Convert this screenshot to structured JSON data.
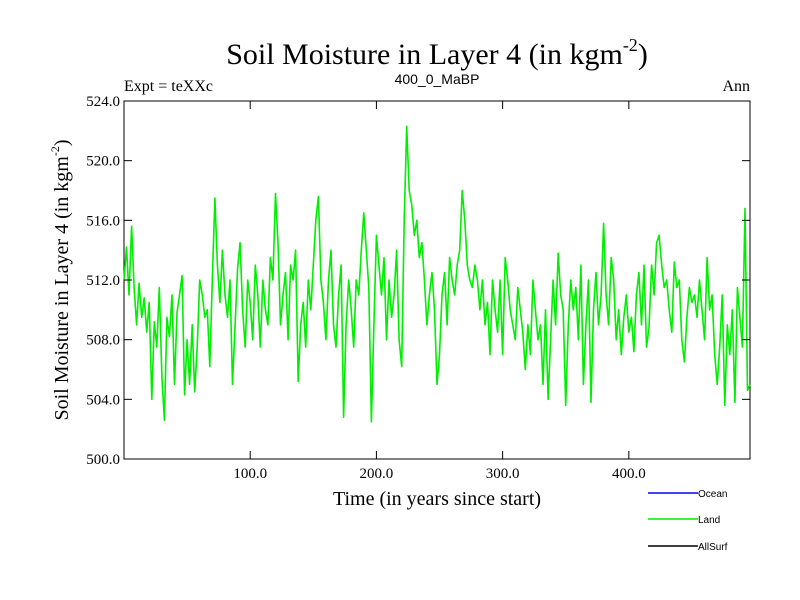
{
  "chart_data": {
    "type": "line",
    "title_main": "Soil Moisture in Layer 4 (in kgm",
    "title_sup": "-2",
    "title_end": ")",
    "subtitle_left": "Expt = teXXc",
    "subtitle_center": "400_0_MaBP",
    "subtitle_right": "Ann",
    "xlabel": "Time (in years since start)",
    "ylabel_main": "Soil Moisture in Layer 4 (in kgm",
    "ylabel_sup": "-2",
    "ylabel_end": ")",
    "xlim": [
      0,
      496
    ],
    "ylim": [
      500,
      524
    ],
    "x_ticks": [
      100,
      200,
      300,
      400
    ],
    "x_tick_labels": [
      "100.0",
      "200.0",
      "300.0",
      "400.0"
    ],
    "y_ticks": [
      500,
      504,
      508,
      512,
      516,
      520,
      524
    ],
    "y_tick_labels": [
      "500.0",
      "504.0",
      "508.0",
      "512.0",
      "516.0",
      "520.0",
      "524.0"
    ],
    "legend": [
      {
        "name": "Ocean",
        "color": "#0000ff"
      },
      {
        "name": "Land",
        "color": "#00ee00"
      },
      {
        "name": "AllSurf",
        "color": "#000000"
      }
    ],
    "series": [
      {
        "name": "Land",
        "color": "#00ee00",
        "points": [
          [
            0,
            512
          ],
          [
            2,
            514.2
          ],
          [
            4,
            511
          ],
          [
            6,
            515.6
          ],
          [
            8,
            511.5
          ],
          [
            10,
            509
          ],
          [
            12,
            511.8
          ],
          [
            14,
            509.5
          ],
          [
            16,
            510.8
          ],
          [
            18,
            508.5
          ],
          [
            20,
            510.5
          ],
          [
            22,
            504
          ],
          [
            24,
            509.2
          ],
          [
            26,
            507.5
          ],
          [
            28,
            511.5
          ],
          [
            30,
            505.5
          ],
          [
            32,
            502.6
          ],
          [
            34,
            509.5
          ],
          [
            36,
            508.2
          ],
          [
            38,
            511
          ],
          [
            40,
            505
          ],
          [
            42,
            509.8
          ],
          [
            44,
            511
          ],
          [
            46,
            512.3
          ],
          [
            48,
            504.3
          ],
          [
            50,
            508
          ],
          [
            52,
            505
          ],
          [
            54,
            509
          ],
          [
            56,
            504.5
          ],
          [
            58,
            507.5
          ],
          [
            60,
            512
          ],
          [
            62,
            511
          ],
          [
            64,
            509.5
          ],
          [
            66,
            510
          ],
          [
            68,
            506.2
          ],
          [
            70,
            512
          ],
          [
            72,
            517.5
          ],
          [
            74,
            513
          ],
          [
            76,
            510.5
          ],
          [
            78,
            514
          ],
          [
            80,
            511
          ],
          [
            82,
            509.5
          ],
          [
            84,
            512
          ],
          [
            86,
            505
          ],
          [
            88,
            509
          ],
          [
            90,
            512.8
          ],
          [
            92,
            514.5
          ],
          [
            94,
            510
          ],
          [
            96,
            507.5
          ],
          [
            98,
            512
          ],
          [
            100,
            510.5
          ],
          [
            102,
            508
          ],
          [
            104,
            513
          ],
          [
            106,
            511
          ],
          [
            108,
            507.5
          ],
          [
            110,
            512
          ],
          [
            112,
            510
          ],
          [
            114,
            509
          ],
          [
            116,
            513.5
          ],
          [
            118,
            512
          ],
          [
            120,
            517.8
          ],
          [
            122,
            514.5
          ],
          [
            124,
            509
          ],
          [
            126,
            511
          ],
          [
            128,
            512.5
          ],
          [
            130,
            508
          ],
          [
            132,
            513
          ],
          [
            134,
            512
          ],
          [
            136,
            514
          ],
          [
            138,
            505.2
          ],
          [
            140,
            509
          ],
          [
            142,
            510.5
          ],
          [
            144,
            507.5
          ],
          [
            146,
            512
          ],
          [
            148,
            510
          ],
          [
            150,
            513
          ],
          [
            152,
            516
          ],
          [
            154,
            517.6
          ],
          [
            156,
            512
          ],
          [
            158,
            510.5
          ],
          [
            160,
            508
          ],
          [
            162,
            512
          ],
          [
            164,
            514
          ],
          [
            166,
            509
          ],
          [
            168,
            507.5
          ],
          [
            170,
            511
          ],
          [
            172,
            513
          ],
          [
            174,
            502.8
          ],
          [
            176,
            509
          ],
          [
            178,
            512
          ],
          [
            180,
            510
          ],
          [
            182,
            507.5
          ],
          [
            184,
            512
          ],
          [
            186,
            511
          ],
          [
            188,
            514
          ],
          [
            190,
            516.5
          ],
          [
            192,
            514
          ],
          [
            194,
            511.5
          ],
          [
            196,
            502.5
          ],
          [
            198,
            509
          ],
          [
            200,
            515
          ],
          [
            202,
            513
          ],
          [
            204,
            511
          ],
          [
            206,
            513.5
          ],
          [
            208,
            508
          ],
          [
            210,
            512
          ],
          [
            212,
            509.5
          ],
          [
            214,
            511
          ],
          [
            216,
            514
          ],
          [
            218,
            508
          ],
          [
            220,
            506.2
          ],
          [
            222,
            516
          ],
          [
            224,
            522.3
          ],
          [
            226,
            518
          ],
          [
            228,
            517
          ],
          [
            230,
            515
          ],
          [
            232,
            516
          ],
          [
            234,
            513.5
          ],
          [
            236,
            514.5
          ],
          [
            238,
            512
          ],
          [
            240,
            509
          ],
          [
            242,
            511
          ],
          [
            244,
            512.5
          ],
          [
            246,
            510
          ],
          [
            248,
            505
          ],
          [
            250,
            507
          ],
          [
            252,
            511
          ],
          [
            254,
            512.5
          ],
          [
            256,
            509
          ],
          [
            258,
            513.5
          ],
          [
            260,
            512
          ],
          [
            262,
            511
          ],
          [
            264,
            513
          ],
          [
            266,
            514
          ],
          [
            268,
            518
          ],
          [
            270,
            516
          ],
          [
            272,
            513
          ],
          [
            274,
            512
          ],
          [
            276,
            511.5
          ],
          [
            278,
            513
          ],
          [
            280,
            512
          ],
          [
            282,
            510
          ],
          [
            284,
            512
          ],
          [
            286,
            509
          ],
          [
            288,
            510.5
          ],
          [
            290,
            507
          ],
          [
            292,
            512
          ],
          [
            294,
            510
          ],
          [
            296,
            508.5
          ],
          [
            298,
            512
          ],
          [
            300,
            507
          ],
          [
            302,
            513.5
          ],
          [
            304,
            512
          ],
          [
            306,
            510
          ],
          [
            308,
            509
          ],
          [
            310,
            508
          ],
          [
            312,
            511.5
          ],
          [
            314,
            510
          ],
          [
            316,
            508.5
          ],
          [
            318,
            506
          ],
          [
            320,
            509
          ],
          [
            322,
            507
          ],
          [
            324,
            512
          ],
          [
            326,
            510
          ],
          [
            328,
            508
          ],
          [
            330,
            509
          ],
          [
            332,
            505
          ],
          [
            334,
            510
          ],
          [
            336,
            504
          ],
          [
            338,
            508
          ],
          [
            340,
            512
          ],
          [
            342,
            509
          ],
          [
            344,
            513.8
          ],
          [
            346,
            511
          ],
          [
            348,
            510
          ],
          [
            350,
            503.6
          ],
          [
            352,
            509
          ],
          [
            354,
            512
          ],
          [
            356,
            510
          ],
          [
            358,
            511.5
          ],
          [
            360,
            508
          ],
          [
            362,
            513
          ],
          [
            364,
            505
          ],
          [
            366,
            509
          ],
          [
            368,
            512
          ],
          [
            370,
            503.8
          ],
          [
            372,
            510
          ],
          [
            374,
            512.5
          ],
          [
            376,
            509
          ],
          [
            378,
            511
          ],
          [
            380,
            515.8
          ],
          [
            382,
            511
          ],
          [
            384,
            509
          ],
          [
            386,
            513.5
          ],
          [
            388,
            512
          ],
          [
            390,
            508
          ],
          [
            392,
            510
          ],
          [
            394,
            507
          ],
          [
            396,
            509.5
          ],
          [
            398,
            511
          ],
          [
            400,
            508.5
          ],
          [
            402,
            509.5
          ],
          [
            404,
            507.2
          ],
          [
            406,
            511
          ],
          [
            408,
            512.5
          ],
          [
            410,
            509
          ],
          [
            412,
            513
          ],
          [
            414,
            507.5
          ],
          [
            416,
            508.8
          ],
          [
            418,
            513
          ],
          [
            420,
            511
          ],
          [
            422,
            514.5
          ],
          [
            424,
            515
          ],
          [
            426,
            513
          ],
          [
            428,
            511.5
          ],
          [
            430,
            512
          ],
          [
            432,
            510
          ],
          [
            434,
            508.5
          ],
          [
            436,
            513.2
          ],
          [
            438,
            511.5
          ],
          [
            440,
            512
          ],
          [
            442,
            508
          ],
          [
            444,
            506.5
          ],
          [
            446,
            509.5
          ],
          [
            448,
            511.5
          ],
          [
            450,
            510.5
          ],
          [
            452,
            511
          ],
          [
            454,
            509.5
          ],
          [
            456,
            512
          ],
          [
            458,
            510
          ],
          [
            460,
            508
          ],
          [
            462,
            513.5
          ],
          [
            464,
            510
          ],
          [
            466,
            511
          ],
          [
            468,
            507
          ],
          [
            470,
            505
          ],
          [
            472,
            507.5
          ],
          [
            474,
            511
          ],
          [
            476,
            503.6
          ],
          [
            478,
            509
          ],
          [
            480,
            507
          ],
          [
            482,
            510
          ],
          [
            484,
            503.8
          ],
          [
            486,
            511.5
          ],
          [
            488,
            509.5
          ],
          [
            490,
            507.5
          ],
          [
            492,
            516.8
          ],
          [
            494,
            504.6
          ],
          [
            496,
            505
          ]
        ]
      }
    ]
  }
}
